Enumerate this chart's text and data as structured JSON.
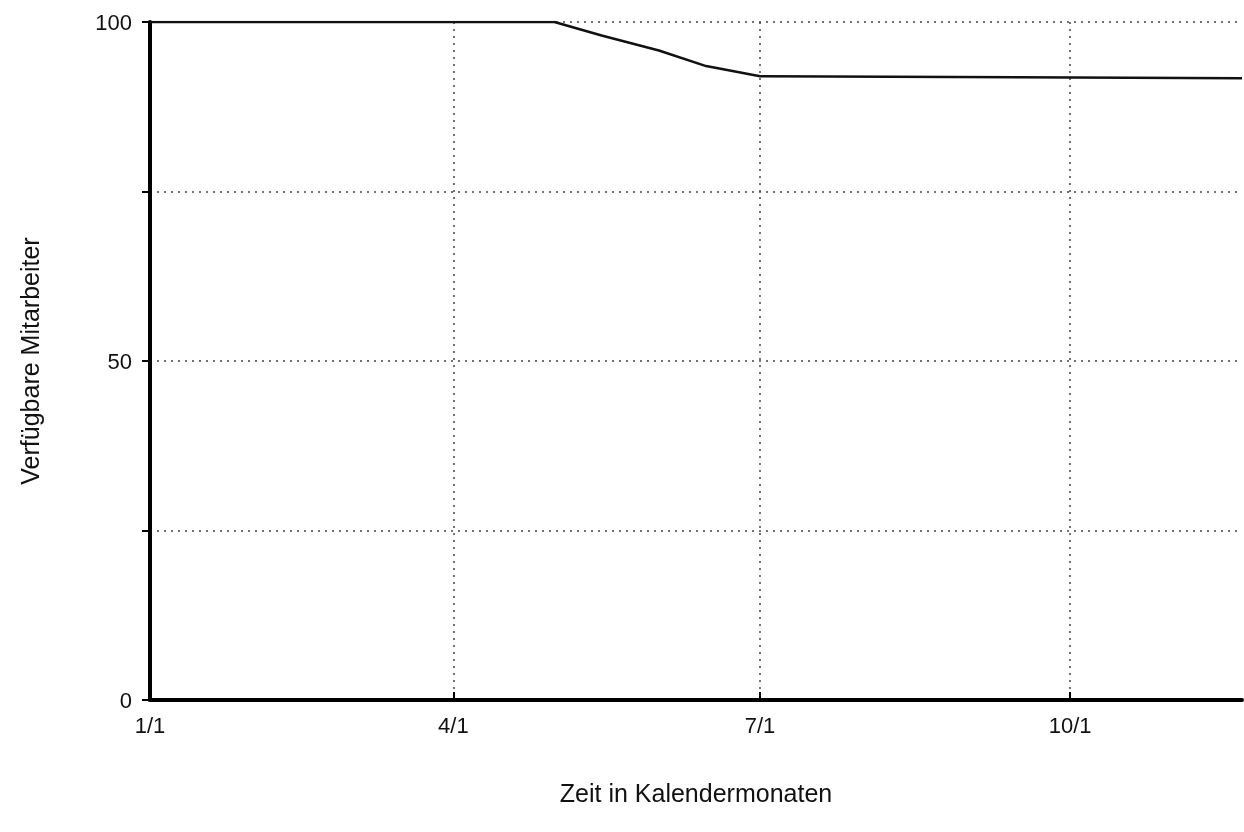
{
  "chart_data": {
    "type": "line",
    "xlabel": "Zeit in Kalendermonaten",
    "ylabel": "Verfügbare Mitarbeiter",
    "x": [
      "--01-01",
      "--05-01",
      "--05-15",
      "--06-01",
      "--06-15",
      "--07-01",
      "--11-21"
    ],
    "series": [
      {
        "color": "#111111",
        "values": [
          100,
          100,
          98,
          95.8,
          93.5,
          92,
          91.7
        ]
      }
    ],
    "xlim": [
      "--01-01",
      "--11-21"
    ],
    "xticks": [
      {
        "value": "--01-01",
        "label": "1/1"
      },
      {
        "value": "--04-01",
        "label": "4/1"
      },
      {
        "value": "--07-01",
        "label": "7/1"
      },
      {
        "value": "--10-01",
        "label": "10/1"
      }
    ],
    "ylim": [
      0,
      100
    ],
    "yticks": [
      0,
      {
        "value": 25,
        "label": null
      },
      50,
      {
        "value": 75,
        "label": null
      },
      100
    ],
    "grid": true,
    "marker": "none",
    "line_style": "solid"
  }
}
